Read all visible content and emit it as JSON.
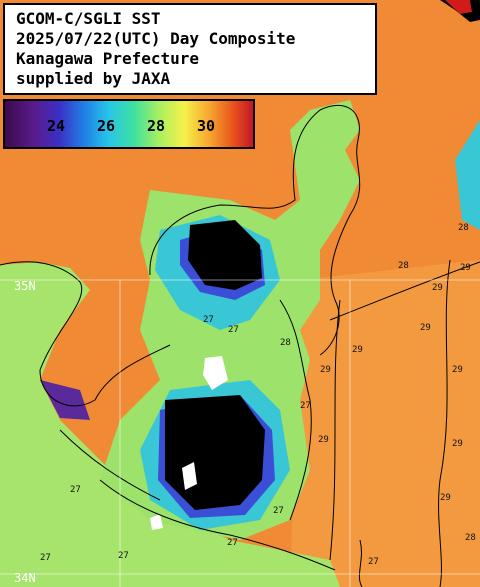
{
  "title_box": {
    "line1": "GCOM-C/SGLI SST",
    "line2": "2025/07/22(UTC) Day Composite",
    "line3": "Kanagawa Prefecture",
    "line4": "supplied by JAXA"
  },
  "colorbar": {
    "ticks": [
      "24",
      "26",
      "28",
      "30"
    ],
    "gradient": [
      "#3a0a4a",
      "#5b1b8c",
      "#3b2fc4",
      "#1f7fe6",
      "#28c6e8",
      "#3fe0a0",
      "#a8f060",
      "#f6f04a",
      "#f7a830",
      "#e8501a",
      "#c0142a"
    ]
  },
  "lat_labels": {
    "n35": "35N",
    "n34": "34N"
  },
  "contour_labels": [
    "29",
    "29",
    "28",
    "29",
    "27",
    "29",
    "28",
    "27",
    "27",
    "29",
    "29",
    "29",
    "27",
    "27",
    "27",
    "27",
    "28",
    "29",
    "28",
    "27",
    "27",
    "29"
  ],
  "colors": {
    "warm_sea": "#f08a34",
    "warm_sea_alt": "#f4a24a",
    "mid_sea": "#9de26a",
    "cool_sea": "#39c7d6",
    "cold_sea": "#3b4fd6",
    "very_cold": "#5a2a9a",
    "land": "#000000",
    "cloud": "#ffffff"
  }
}
